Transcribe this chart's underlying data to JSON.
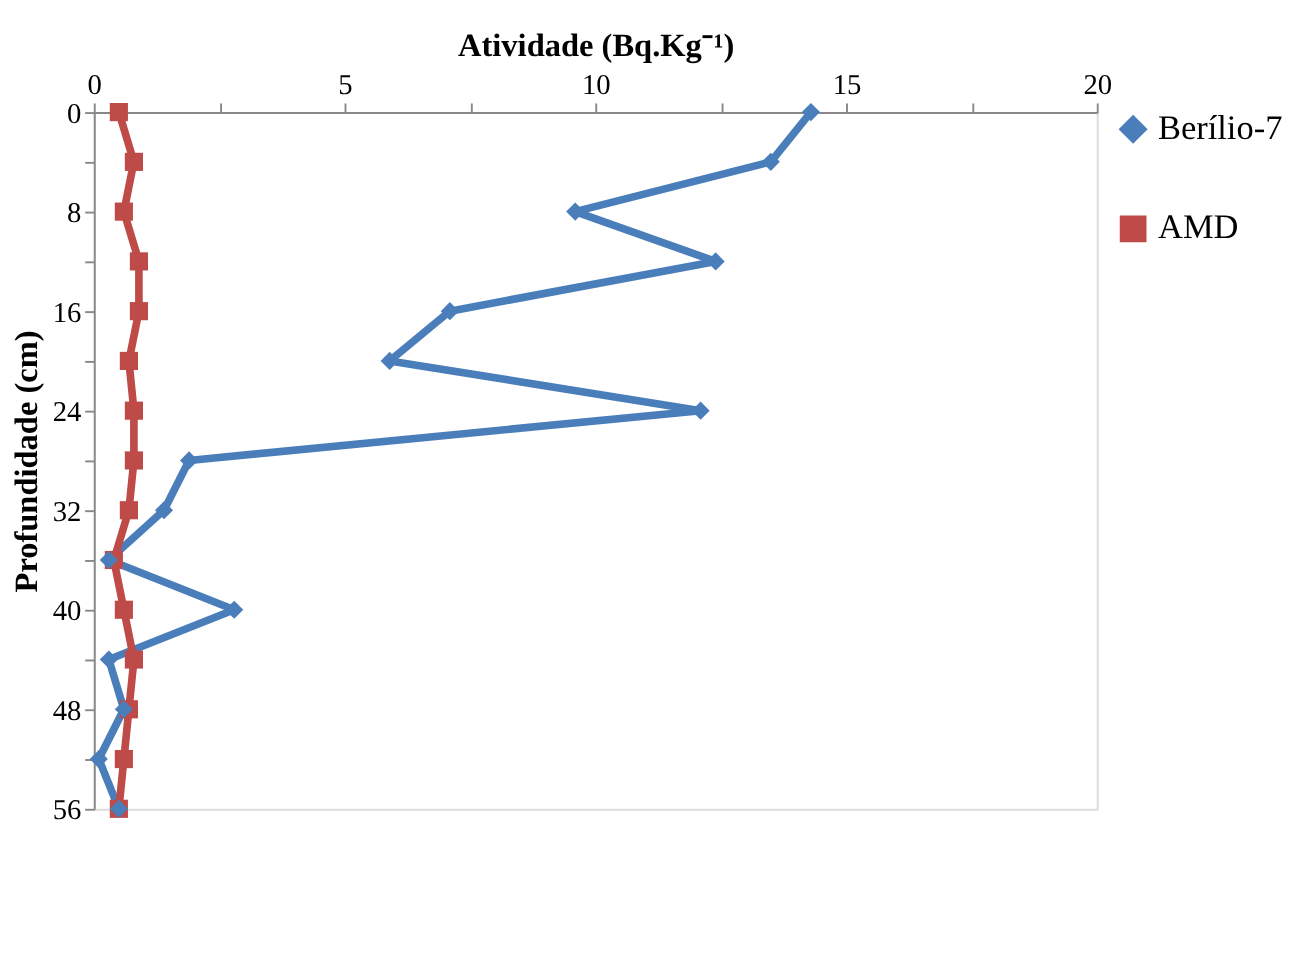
{
  "chart_data": {
    "type": "line",
    "xlabel": "Atividade (Bq.Kg⁻¹)",
    "ylabel": "Profundidade (cm)",
    "xlim": [
      0,
      20
    ],
    "xticks": [
      0,
      {
        "value": 2.5,
        "label": null
      },
      5,
      {
        "value": 7.5,
        "label": null
      },
      10,
      {
        "value": 12.5,
        "label": null
      },
      15,
      {
        "value": 17.5,
        "label": null
      },
      20
    ],
    "ylim": [
      56,
      0
    ],
    "yticks": [
      0,
      {
        "value": 4,
        "label": null
      },
      8,
      {
        "value": 12,
        "label": null
      },
      16,
      {
        "value": 20,
        "label": null
      },
      24,
      {
        "value": 28,
        "label": null
      },
      32,
      {
        "value": 36,
        "label": null
      },
      40,
      {
        "value": 44,
        "label": null
      },
      48,
      {
        "value": 52,
        "label": null
      },
      56
    ],
    "legend": "right",
    "grid": false,
    "series": [
      {
        "name": "Berílio-7",
        "color": "#4a7ebb",
        "marker": "diamond",
        "x": [
          14.3,
          13.5,
          9.6,
          12.4,
          7.1,
          5.9,
          12.1,
          1.9,
          1.4,
          0.3,
          2.8,
          0.3,
          0.6,
          0.1,
          0.5
        ],
        "values": [
          0,
          4,
          8,
          12,
          16,
          20,
          24,
          28,
          32,
          36,
          40,
          44,
          48,
          52,
          56
        ]
      },
      {
        "name": "AMD",
        "color": "#be4b48",
        "marker": "square",
        "x": [
          0.5,
          0.8,
          0.6,
          0.9,
          0.9,
          0.7,
          0.8,
          0.8,
          0.7,
          0.4,
          0.6,
          0.8,
          0.7,
          0.6,
          0.5
        ],
        "values": [
          0,
          4,
          8,
          12,
          16,
          20,
          24,
          28,
          32,
          36,
          40,
          44,
          48,
          52,
          56
        ]
      }
    ]
  }
}
